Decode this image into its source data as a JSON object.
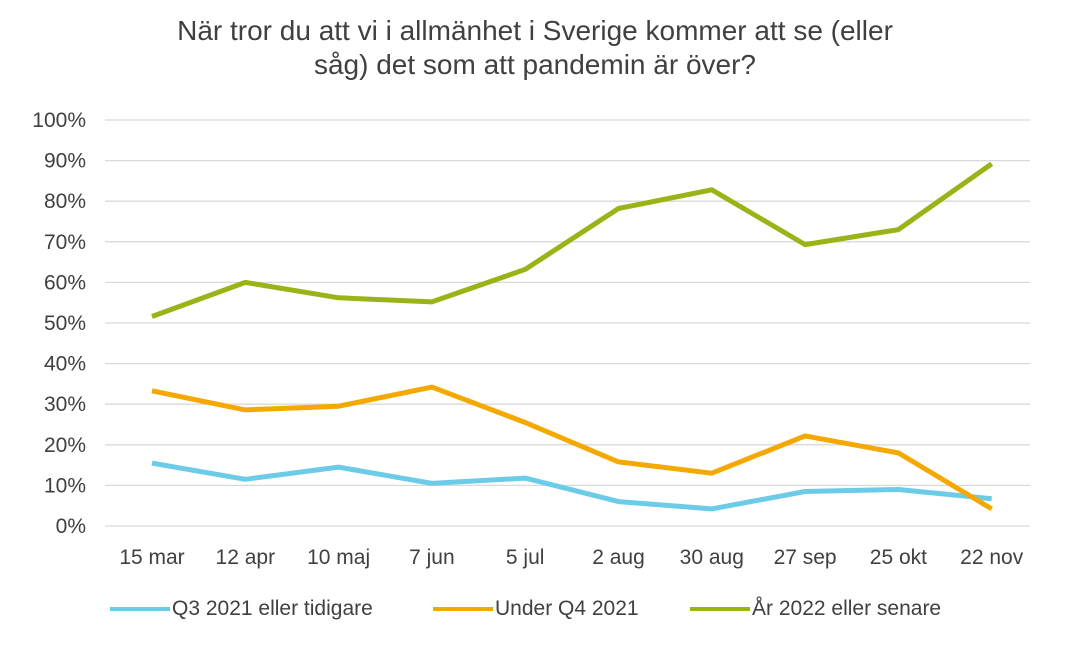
{
  "chart_data": {
    "type": "line",
    "title_lines": [
      "När tror du att vi i allmänhet i Sverige kommer att se (eller",
      "såg) det som att pandemin är över?"
    ],
    "categories": [
      "15 mar",
      "12 apr",
      "10 maj",
      "7 jun",
      "5 jul",
      "2 aug",
      "30 aug",
      "27 sep",
      "25 okt",
      "22 nov"
    ],
    "y_tick_labels": [
      "0%",
      "10%",
      "20%",
      "30%",
      "40%",
      "50%",
      "60%",
      "70%",
      "80%",
      "90%",
      "100%"
    ],
    "ylim": [
      0,
      100
    ],
    "y_unit": "%",
    "grid": "horizontal",
    "legend_position": "bottom",
    "series": [
      {
        "name": "Q3 2021 eller tidigare",
        "color": "#6CCCE8",
        "values": [
          15.5,
          11.5,
          14.5,
          10.5,
          11.8,
          6.0,
          4.2,
          8.5,
          9.0,
          6.7
        ]
      },
      {
        "name": "Under Q4 2021",
        "color": "#F5A800",
        "values": [
          33.3,
          28.6,
          29.5,
          34.2,
          25.5,
          15.8,
          13.0,
          22.2,
          18.0,
          4.2
        ]
      },
      {
        "name": "År 2022 eller senare",
        "color": "#9BB317",
        "values": [
          51.6,
          60.0,
          56.2,
          55.2,
          63.2,
          78.2,
          82.8,
          69.3,
          73.0,
          89.2
        ]
      }
    ]
  }
}
